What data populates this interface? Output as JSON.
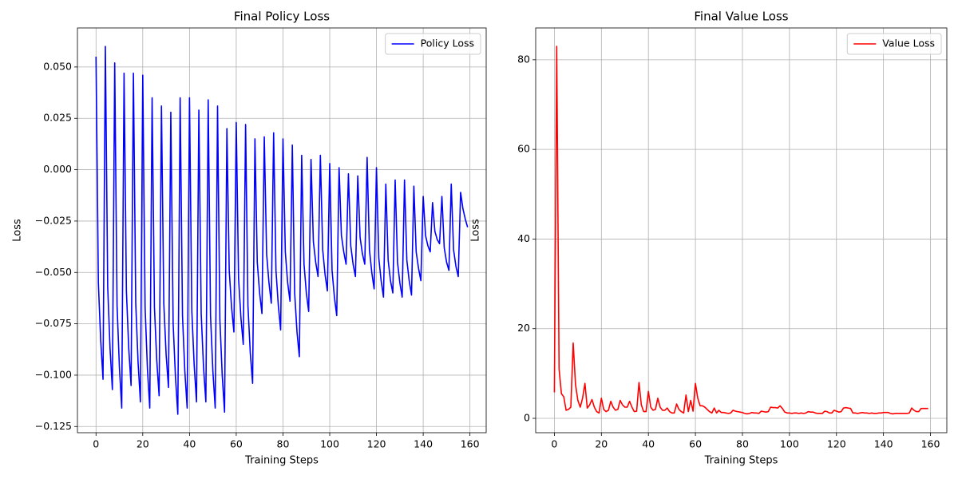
{
  "chart_data": [
    {
      "type": "line",
      "title": "Final Policy Loss",
      "xlabel": "Training Steps",
      "ylabel": "Loss",
      "x": [
        0,
        1,
        2,
        3,
        4,
        5,
        6,
        7,
        8,
        9,
        10,
        11,
        12,
        13,
        14,
        15,
        16,
        17,
        18,
        19,
        20,
        21,
        22,
        23,
        24,
        25,
        26,
        27,
        28,
        29,
        30,
        31,
        32,
        33,
        34,
        35,
        36,
        37,
        38,
        39,
        40,
        41,
        42,
        43,
        44,
        45,
        46,
        47,
        48,
        49,
        50,
        51,
        52,
        53,
        54,
        55,
        56,
        57,
        58,
        59,
        60,
        61,
        62,
        63,
        64,
        65,
        66,
        67,
        68,
        69,
        70,
        71,
        72,
        73,
        74,
        75,
        76,
        77,
        78,
        79,
        80,
        81,
        82,
        83,
        84,
        85,
        86,
        87,
        88,
        89,
        90,
        91,
        92,
        93,
        94,
        95,
        96,
        97,
        98,
        99,
        100,
        101,
        102,
        103,
        104,
        105,
        106,
        107,
        108,
        109,
        110,
        111,
        112,
        113,
        114,
        115,
        116,
        117,
        118,
        119,
        120,
        121,
        122,
        123,
        124,
        125,
        126,
        127,
        128,
        129,
        130,
        131,
        132,
        133,
        134,
        135,
        136,
        137,
        138,
        139,
        140,
        141,
        142,
        143,
        144,
        145,
        146,
        147,
        148,
        149,
        150,
        151,
        152,
        153,
        154,
        155,
        156,
        157,
        158,
        159
      ],
      "series": [
        {
          "name": "Policy Loss",
          "color": "#0000ff",
          "values": [
            0.055,
            -0.055,
            -0.083,
            -0.102,
            0.06,
            -0.057,
            -0.087,
            -0.107,
            0.052,
            -0.066,
            -0.096,
            -0.116,
            0.047,
            -0.059,
            -0.087,
            -0.105,
            0.047,
            -0.065,
            -0.094,
            -0.113,
            0.046,
            -0.067,
            -0.097,
            -0.116,
            0.035,
            -0.067,
            -0.093,
            -0.11,
            0.031,
            -0.065,
            -0.09,
            -0.106,
            0.028,
            -0.075,
            -0.101,
            -0.119,
            0.035,
            -0.071,
            -0.098,
            -0.116,
            0.035,
            -0.069,
            -0.095,
            -0.113,
            0.029,
            -0.07,
            -0.096,
            -0.113,
            0.034,
            -0.071,
            -0.098,
            -0.116,
            0.031,
            -0.073,
            -0.1,
            -0.118,
            0.02,
            -0.049,
            -0.067,
            -0.079,
            0.023,
            -0.053,
            -0.072,
            -0.085,
            0.022,
            -0.066,
            -0.089,
            -0.104,
            0.015,
            -0.045,
            -0.06,
            -0.07,
            0.016,
            -0.041,
            -0.055,
            -0.065,
            0.018,
            -0.049,
            -0.066,
            -0.078,
            0.015,
            -0.04,
            -0.055,
            -0.064,
            0.012,
            -0.06,
            -0.079,
            -0.091,
            0.007,
            -0.046,
            -0.06,
            -0.069,
            0.005,
            -0.035,
            -0.045,
            -0.052,
            0.007,
            -0.039,
            -0.051,
            -0.059,
            0.003,
            -0.049,
            -0.062,
            -0.071,
            0.001,
            -0.032,
            -0.04,
            -0.046,
            -0.002,
            -0.037,
            -0.046,
            -0.052,
            -0.003,
            -0.033,
            -0.041,
            -0.046,
            0.006,
            -0.039,
            -0.05,
            -0.058,
            0.001,
            -0.043,
            -0.054,
            -0.062,
            -0.007,
            -0.044,
            -0.054,
            -0.06,
            -0.005,
            -0.045,
            -0.055,
            -0.062,
            -0.005,
            -0.044,
            -0.054,
            -0.061,
            -0.008,
            -0.04,
            -0.048,
            -0.054,
            -0.013,
            -0.032,
            -0.037,
            -0.04,
            -0.016,
            -0.03,
            -0.034,
            -0.036,
            -0.013,
            -0.038,
            -0.045,
            -0.049,
            -0.007,
            -0.039,
            -0.047,
            -0.052,
            -0.011,
            -0.019,
            -0.024,
            -0.028
          ]
        }
      ],
      "xlim": [
        -7.95,
        166.95
      ],
      "ylim": [
        -0.128,
        0.069
      ],
      "xticks": [
        0,
        20,
        40,
        60,
        80,
        100,
        120,
        140,
        160
      ],
      "yticks": [
        {
          "value": -0.125,
          "label": "−0.125"
        },
        {
          "value": -0.1,
          "label": "−0.100"
        },
        {
          "value": -0.075,
          "label": "−0.075"
        },
        {
          "value": -0.05,
          "label": "−0.050"
        },
        {
          "value": -0.025,
          "label": "−0.025"
        },
        {
          "value": 0,
          "label": "0.000"
        },
        {
          "value": 0.025,
          "label": "0.025"
        },
        {
          "value": 0.05,
          "label": "0.050"
        }
      ],
      "grid": true,
      "legend": "upper right"
    },
    {
      "type": "line",
      "title": "Final Value Loss",
      "xlabel": "Training Steps",
      "ylabel": "Loss",
      "x": [
        0,
        1,
        2,
        3,
        4,
        5,
        6,
        7,
        8,
        9,
        10,
        11,
        12,
        13,
        14,
        15,
        16,
        17,
        18,
        19,
        20,
        21,
        22,
        23,
        24,
        25,
        26,
        27,
        28,
        29,
        30,
        31,
        32,
        33,
        34,
        35,
        36,
        37,
        38,
        39,
        40,
        41,
        42,
        43,
        44,
        45,
        46,
        47,
        48,
        49,
        50,
        51,
        52,
        53,
        54,
        55,
        56,
        57,
        58,
        59,
        60,
        61,
        62,
        63,
        64,
        65,
        66,
        67,
        68,
        69,
        70,
        71,
        72,
        73,
        74,
        75,
        76,
        77,
        78,
        79,
        80,
        81,
        82,
        83,
        84,
        85,
        86,
        87,
        88,
        89,
        90,
        91,
        92,
        93,
        94,
        95,
        96,
        97,
        98,
        99,
        100,
        101,
        102,
        103,
        104,
        105,
        106,
        107,
        108,
        109,
        110,
        111,
        112,
        113,
        114,
        115,
        116,
        117,
        118,
        119,
        120,
        121,
        122,
        123,
        124,
        125,
        126,
        127,
        128,
        129,
        130,
        131,
        132,
        133,
        134,
        135,
        136,
        137,
        138,
        139,
        140,
        141,
        142,
        143,
        144,
        145,
        146,
        147,
        148,
        149,
        150,
        151,
        152,
        153,
        154,
        155,
        156,
        157,
        158,
        159
      ],
      "series": [
        {
          "name": "Value Loss",
          "color": "#ff0000",
          "values": [
            5.8,
            83,
            11,
            5.5,
            4.8,
            1.8,
            2,
            2.5,
            16.8,
            7.5,
            4,
            2.5,
            4.5,
            7.8,
            2.3,
            3,
            4.2,
            2.5,
            1.5,
            1.2,
            4.5,
            2,
            1.5,
            1.8,
            3.8,
            2.5,
            1.8,
            2,
            4,
            3,
            2.5,
            2.5,
            3.8,
            2.5,
            1.5,
            1.6,
            8,
            3,
            1.5,
            1.5,
            6,
            2.5,
            1.8,
            2,
            4.5,
            2.5,
            1.8,
            1.8,
            2.3,
            1.5,
            1.2,
            1.2,
            3.2,
            2,
            1.5,
            1.2,
            5.2,
            1.5,
            4,
            1.6,
            7.8,
            4.5,
            2.8,
            2.8,
            2.5,
            2,
            1.5,
            1.2,
            2.3,
            1.2,
            1.8,
            1.3,
            1.3,
            1.2,
            1.1,
            1.2,
            1.8,
            1.6,
            1.5,
            1.4,
            1.3,
            1.1,
            1,
            1.1,
            1.3,
            1.2,
            1.2,
            1.1,
            1.6,
            1.5,
            1.4,
            1.5,
            2.5,
            2.4,
            2.4,
            2.3,
            2.8,
            2.2,
            1.4,
            1.2,
            1.2,
            1.1,
            1.2,
            1.2,
            1.1,
            1.2,
            1.1,
            1.2,
            1.5,
            1.4,
            1.4,
            1.2,
            1.1,
            1.1,
            1.1,
            1.6,
            1.5,
            1.2,
            1.2,
            1.8,
            1.6,
            1.4,
            1.5,
            2.3,
            2.4,
            2.3,
            2.2,
            1.2,
            1.2,
            1.1,
            1.2,
            1.3,
            1.2,
            1.2,
            1.1,
            1.2,
            1.1,
            1.1,
            1.2,
            1.2,
            1.3,
            1.3,
            1.3,
            1.1,
            1,
            1.1,
            1.1,
            1.1,
            1.1,
            1.1,
            1.1,
            1.2,
            2.3,
            1.8,
            1.5,
            1.5,
            2.2,
            2.2,
            2.2,
            2.2
          ]
        }
      ],
      "xlim": [
        -7.95,
        166.95
      ],
      "ylim": [
        -3.2,
        87.1
      ],
      "xticks": [
        0,
        20,
        40,
        60,
        80,
        100,
        120,
        140,
        160
      ],
      "yticks": [
        0,
        20,
        40,
        60,
        80
      ],
      "grid": true,
      "legend": "upper right"
    }
  ]
}
